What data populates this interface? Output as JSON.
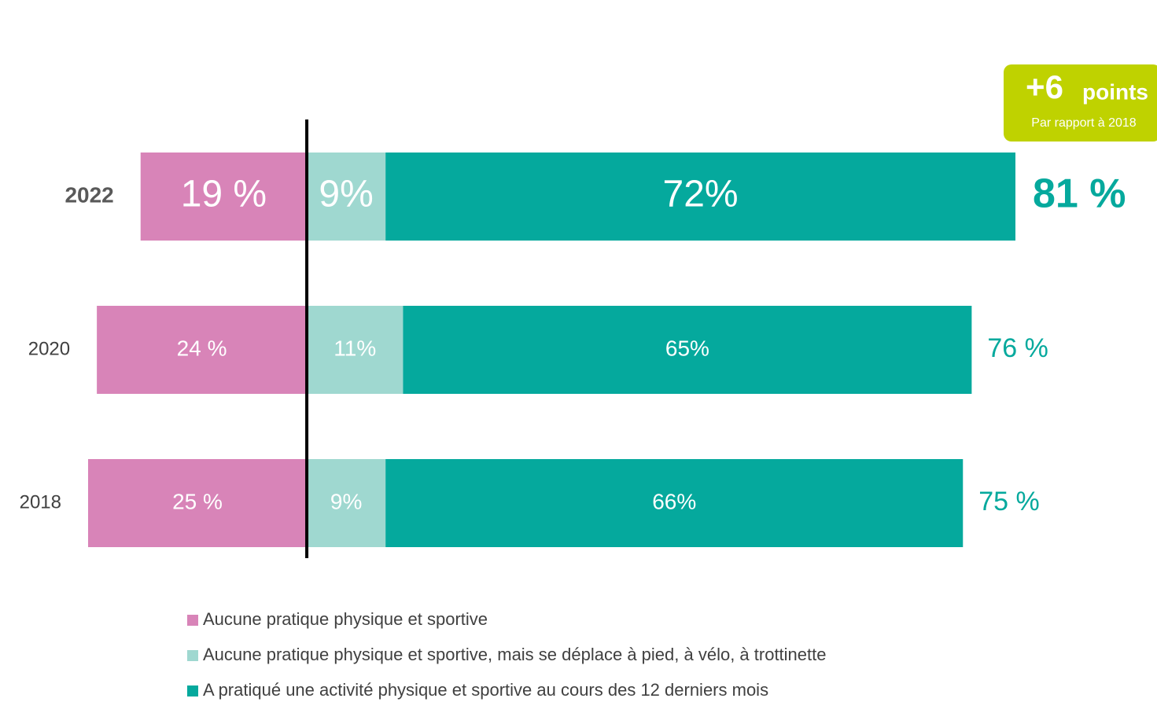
{
  "chart_data": {
    "type": "diverging-bar",
    "categories": [
      "2022",
      "2020",
      "2018"
    ],
    "series": [
      {
        "name": "Aucune pratique physique et sportive",
        "color": "#d884b8",
        "side": "left",
        "values": [
          19,
          24,
          25
        ],
        "value_labels": [
          "19 %",
          "24 %",
          "25 %"
        ]
      },
      {
        "name": "Aucune pratique physique et sportive, mais se déplace à pied, à vélo, à trottinette",
        "color": "#9fd8d0",
        "side": "right",
        "values": [
          9,
          11,
          9
        ],
        "value_labels": [
          "9%",
          "11%",
          "9%"
        ]
      },
      {
        "name": "A pratiqué une activité physique et sportive au cours des 12 derniers mois",
        "color": "#05a99d",
        "side": "right",
        "values": [
          72,
          65,
          66
        ],
        "value_labels": [
          "72%",
          "65%",
          "66%"
        ]
      }
    ],
    "totals": [
      81,
      76,
      75
    ],
    "total_labels": [
      "81 %",
      "76 %",
      "75 %"
    ],
    "total_color": "#05a99d",
    "badge": {
      "text": "+6",
      "unit": "points",
      "note": "Par rapport à 2018",
      "color": "#bfd200"
    }
  }
}
